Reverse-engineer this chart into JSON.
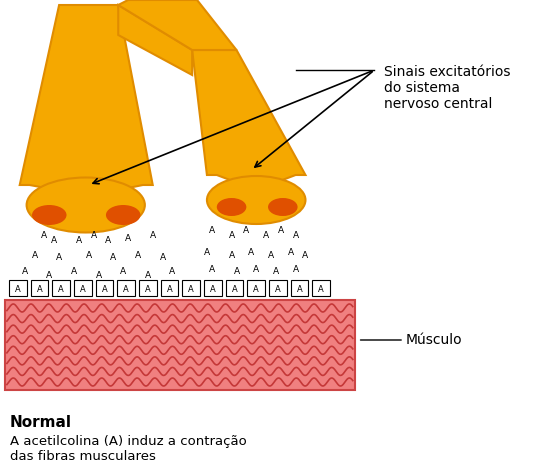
{
  "bg_color": "#ffffff",
  "nerve_color": "#F5A800",
  "nerve_shadow": "#E08C00",
  "terminal_orange": "#E05000",
  "muscle_bg": "#F08080",
  "muscle_line_color": "#C03030",
  "muscle_highlight": "#FFB0B0",
  "text_label_arrow": "Sinais excitatórios\ndo sistema\nnervoso central",
  "text_musculo": "Músculo",
  "text_normal": "Normal",
  "text_description": "A acetilcolina (A) induz a contração\ndas fibras musculares",
  "fig_width": 5.43,
  "fig_height": 4.74,
  "dpi": 100
}
